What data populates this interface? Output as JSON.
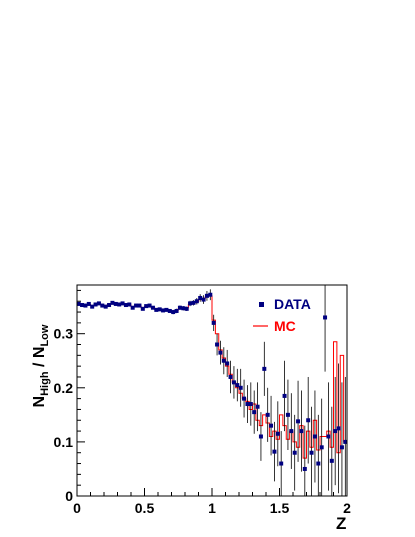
{
  "chart_data": {
    "type": "scatter",
    "x_label": "Z",
    "y_label_main": "N",
    "y_label_sub_num": "High",
    "y_label_div": " / N",
    "y_label_sub_den": "Low",
    "xlim": [
      0,
      2
    ],
    "ylim": [
      0,
      0.39
    ],
    "x_ticks": [
      "0",
      "0.5",
      "1",
      "1.5",
      "2"
    ],
    "x_tick_values": [
      0,
      0.5,
      1,
      1.5,
      2
    ],
    "y_ticks": [
      "0",
      "0.1",
      "0.2",
      "0.3"
    ],
    "y_tick_values": [
      0,
      0.1,
      0.2,
      0.3
    ],
    "colors": {
      "data": "#000080",
      "mc": "#ff0000",
      "error": "#000000"
    },
    "legend": {
      "position": "top-right",
      "data_label": "DATA",
      "mc_label": "MC"
    },
    "bin_width": 0.025,
    "series": [
      {
        "name": "DATA",
        "type": "points",
        "x": [
          0.0125,
          0.0375,
          0.0625,
          0.0875,
          0.1125,
          0.1375,
          0.1625,
          0.1875,
          0.2125,
          0.2375,
          0.2625,
          0.2875,
          0.3125,
          0.3375,
          0.3625,
          0.3875,
          0.4125,
          0.4375,
          0.4625,
          0.4875,
          0.5125,
          0.5375,
          0.5625,
          0.5875,
          0.6125,
          0.6375,
          0.6625,
          0.6875,
          0.7125,
          0.7375,
          0.7625,
          0.7875,
          0.8125,
          0.8375,
          0.8625,
          0.8875,
          0.9125,
          0.9375,
          0.9625,
          0.9875,
          1.0125,
          1.0375,
          1.0625,
          1.0875,
          1.1125,
          1.1375,
          1.1625,
          1.1875,
          1.2125,
          1.2375,
          1.2625,
          1.2875,
          1.3125,
          1.3375,
          1.3625,
          1.3875,
          1.4125,
          1.4375,
          1.4625,
          1.4875,
          1.5125,
          1.5375,
          1.5625,
          1.5875,
          1.6125,
          1.6375,
          1.6625,
          1.6875,
          1.7125,
          1.7375,
          1.7625,
          1.7875,
          1.8125,
          1.8375,
          1.8625,
          1.8875,
          1.9125,
          1.9375,
          1.9625,
          1.9875
        ],
        "y": [
          0.355,
          0.353,
          0.352,
          0.355,
          0.35,
          0.354,
          0.356,
          0.352,
          0.35,
          0.353,
          0.357,
          0.355,
          0.354,
          0.356,
          0.353,
          0.354,
          0.348,
          0.352,
          0.352,
          0.346,
          0.351,
          0.352,
          0.348,
          0.344,
          0.345,
          0.343,
          0.344,
          0.342,
          0.34,
          0.342,
          0.348,
          0.347,
          0.346,
          0.356,
          0.357,
          0.36,
          0.366,
          0.363,
          0.37,
          0.372,
          0.32,
          0.28,
          0.265,
          0.25,
          0.245,
          0.22,
          0.21,
          0.205,
          0.2,
          0.18,
          0.17,
          0.17,
          0.155,
          0.165,
          0.11,
          0.235,
          0.15,
          0.13,
          0.082,
          0.115,
          0.06,
          0.185,
          0.15,
          0.12,
          0.08,
          0.138,
          0.12,
          0.05,
          0.14,
          0.08,
          0.11,
          0.06,
          0.09,
          0.33,
          0.11,
          0.065,
          0.12,
          0.125,
          0.09,
          0.1
        ],
        "err": [
          0.003,
          0.003,
          0.003,
          0.003,
          0.003,
          0.003,
          0.003,
          0.003,
          0.003,
          0.003,
          0.003,
          0.003,
          0.003,
          0.003,
          0.003,
          0.003,
          0.003,
          0.003,
          0.003,
          0.003,
          0.003,
          0.003,
          0.003,
          0.003,
          0.003,
          0.003,
          0.003,
          0.003,
          0.004,
          0.004,
          0.004,
          0.004,
          0.004,
          0.005,
          0.005,
          0.006,
          0.007,
          0.008,
          0.009,
          0.01,
          0.015,
          0.02,
          0.022,
          0.025,
          0.025,
          0.03,
          0.03,
          0.03,
          0.035,
          0.035,
          0.035,
          0.04,
          0.04,
          0.045,
          0.045,
          0.05,
          0.05,
          0.055,
          0.055,
          0.06,
          0.06,
          0.065,
          0.065,
          0.07,
          0.07,
          0.075,
          0.075,
          0.08,
          0.08,
          0.085,
          0.085,
          0.09,
          0.09,
          0.1,
          0.1,
          0.1,
          0.1,
          0.12,
          0.12,
          0.12
        ]
      },
      {
        "name": "MC",
        "type": "step",
        "x": [
          0.0125,
          0.0375,
          0.0625,
          0.0875,
          0.1125,
          0.1375,
          0.1625,
          0.1875,
          0.2125,
          0.2375,
          0.2625,
          0.2875,
          0.3125,
          0.3375,
          0.3625,
          0.3875,
          0.4125,
          0.4375,
          0.4625,
          0.4875,
          0.5125,
          0.5375,
          0.5625,
          0.5875,
          0.6125,
          0.6375,
          0.6625,
          0.6875,
          0.7125,
          0.7375,
          0.7625,
          0.7875,
          0.8125,
          0.8375,
          0.8625,
          0.8875,
          0.9125,
          0.9375,
          0.9625,
          0.9875,
          1.0125,
          1.0375,
          1.0625,
          1.0875,
          1.1125,
          1.1375,
          1.1625,
          1.1875,
          1.2125,
          1.2375,
          1.2625,
          1.2875,
          1.3125,
          1.3375,
          1.3625,
          1.3875,
          1.4125,
          1.4375,
          1.4625,
          1.4875,
          1.5125,
          1.5375,
          1.5625,
          1.5875,
          1.6125,
          1.6375,
          1.6625,
          1.6875,
          1.7125,
          1.7375,
          1.7625,
          1.7875,
          1.8125,
          1.8375,
          1.8625,
          1.8875,
          1.9125,
          1.9375,
          1.9625,
          1.9875
        ],
        "y": [
          0.355,
          0.354,
          0.353,
          0.354,
          0.352,
          0.353,
          0.355,
          0.353,
          0.352,
          0.354,
          0.355,
          0.354,
          0.354,
          0.354,
          0.353,
          0.353,
          0.35,
          0.351,
          0.351,
          0.348,
          0.35,
          0.35,
          0.348,
          0.345,
          0.345,
          0.344,
          0.344,
          0.342,
          0.342,
          0.343,
          0.346,
          0.347,
          0.348,
          0.354,
          0.356,
          0.359,
          0.363,
          0.365,
          0.368,
          0.37,
          0.325,
          0.3,
          0.27,
          0.255,
          0.24,
          0.225,
          0.21,
          0.2,
          0.19,
          0.18,
          0.175,
          0.16,
          0.17,
          0.14,
          0.13,
          0.15,
          0.135,
          0.11,
          0.12,
          0.105,
          0.15,
          0.13,
          0.105,
          0.12,
          0.1,
          0.09,
          0.13,
          0.07,
          0.12,
          0.09,
          0.14,
          0.085,
          0.11,
          0.11,
          0.12,
          0.09,
          0.285,
          0.08,
          0.26,
          0.1
        ]
      }
    ]
  }
}
